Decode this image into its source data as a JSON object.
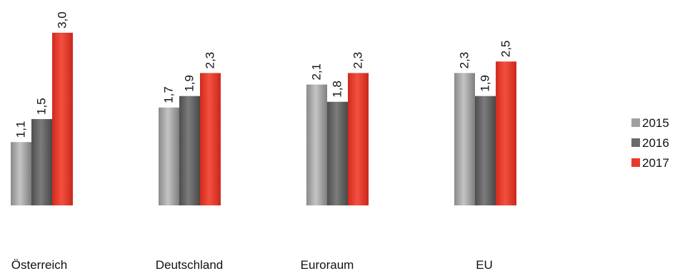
{
  "chart_data": {
    "type": "bar",
    "categories": [
      "Österreich",
      "Deutschland",
      "Euroraum",
      "EU"
    ],
    "series": [
      {
        "name": "2015",
        "values": [
          1.1,
          1.7,
          2.1,
          2.3
        ],
        "labels": [
          "1,1",
          "1,7",
          "2,1",
          "2,3"
        ],
        "color": "#a0a0a0"
      },
      {
        "name": "2016",
        "values": [
          1.5,
          1.9,
          1.8,
          1.9
        ],
        "labels": [
          "1,5",
          "1,9",
          "1,8",
          "1,9"
        ],
        "color": "#6a6a6a"
      },
      {
        "name": "2017",
        "values": [
          3.0,
          2.3,
          2.3,
          2.5
        ],
        "labels": [
          "3,0",
          "2,3",
          "2,3",
          "2,5"
        ],
        "color": "#e8392a"
      }
    ],
    "title": "",
    "xlabel": "",
    "ylabel": "",
    "ylim": [
      0,
      3.0
    ],
    "grid": false,
    "legend": "right"
  }
}
